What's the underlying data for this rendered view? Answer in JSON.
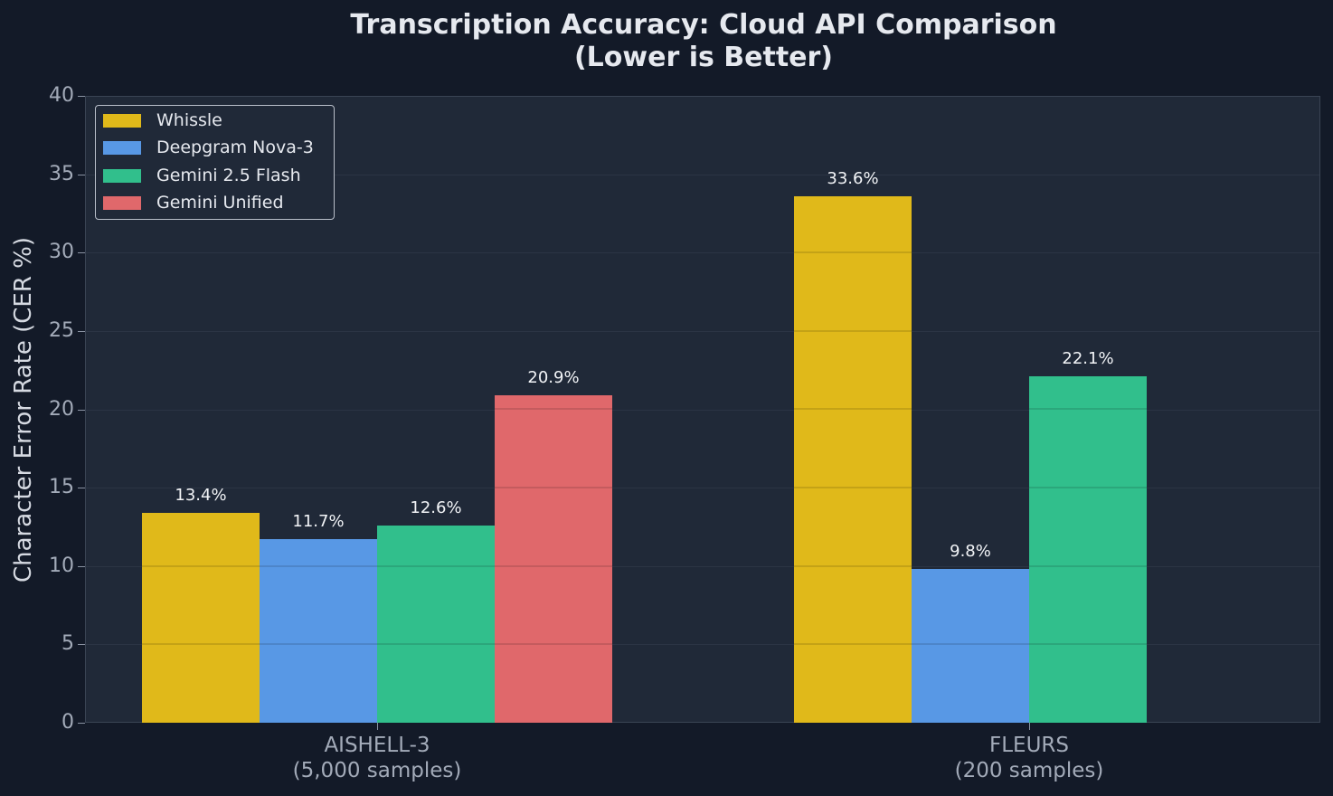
{
  "chart_data": {
    "type": "bar",
    "title": "Transcription Accuracy: Cloud API Comparison\n(Lower is Better)",
    "title_lines": [
      "Transcription Accuracy: Cloud API Comparison",
      "(Lower is Better)"
    ],
    "xlabel": "",
    "ylabel": "Character Error Rate (CER %)",
    "ylim": [
      0,
      40
    ],
    "yticks": [
      0,
      5,
      10,
      15,
      20,
      25,
      30,
      35,
      40
    ],
    "grid": true,
    "legend_position": "upper left",
    "categories": [
      "AISHELL-3\n(5,000 samples)",
      "FLEURS\n(200 samples)"
    ],
    "category_lines": [
      [
        "AISHELL-3",
        "(5,000 samples)"
      ],
      [
        "FLEURS",
        "(200 samples)"
      ]
    ],
    "series": [
      {
        "name": "Whissle",
        "color": "#e0b91a",
        "values": [
          13.4,
          33.6
        ],
        "labels": [
          "13.4%",
          "33.6%"
        ]
      },
      {
        "name": "Deepgram Nova-3",
        "color": "#5898e5",
        "values": [
          11.7,
          9.8
        ],
        "labels": [
          "11.7%",
          "9.8%"
        ]
      },
      {
        "name": "Gemini 2.5 Flash",
        "color": "#31bf8c",
        "values": [
          12.6,
          22.1
        ],
        "labels": [
          "12.6%",
          "22.1%"
        ]
      },
      {
        "name": "Gemini Unified",
        "color": "#e0686b",
        "values": [
          20.9,
          null
        ],
        "labels": [
          "20.9%",
          ""
        ]
      }
    ]
  }
}
